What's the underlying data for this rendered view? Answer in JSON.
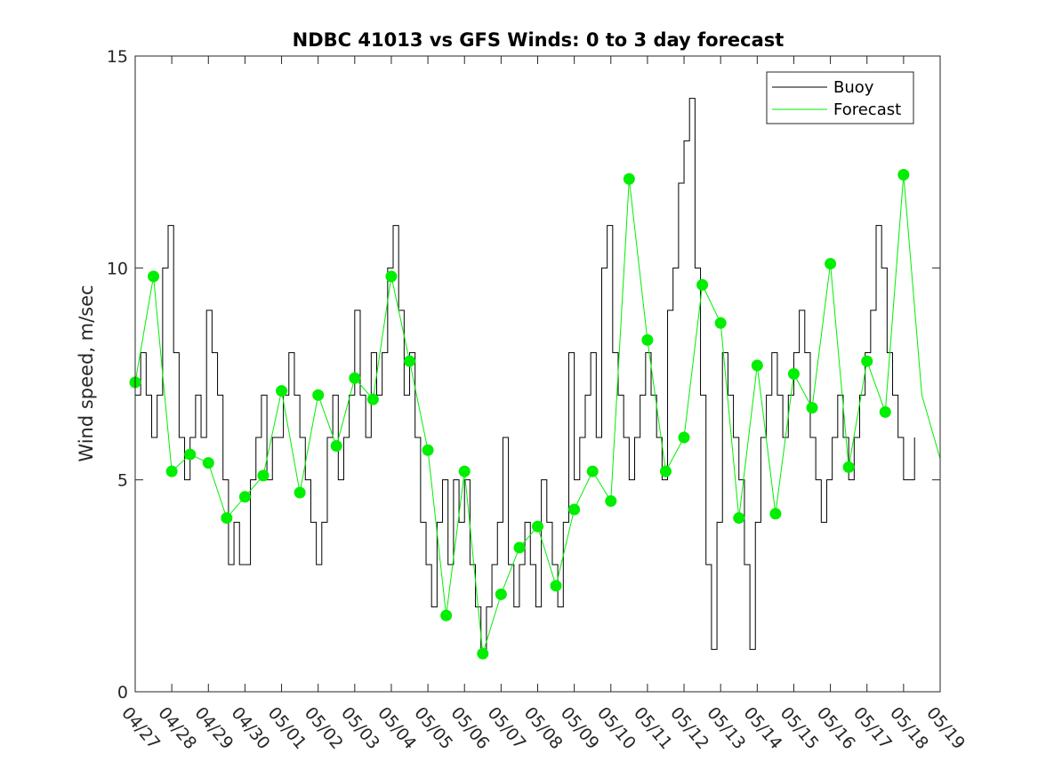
{
  "chart_data": {
    "type": "line",
    "title": "NDBC 41013 vs GFS Winds: 0 to 3 day forecast",
    "xlabel": "",
    "ylabel": "Wind speed, m/sec",
    "ylim": [
      0,
      15
    ],
    "yticks": [
      "0",
      "5",
      "10",
      "15"
    ],
    "xlim": [
      0,
      22
    ],
    "xticks": [
      "04/27",
      "04/28",
      "04/29",
      "04/30",
      "05/01",
      "05/02",
      "05/03",
      "05/04",
      "05/05",
      "05/06",
      "05/07",
      "05/08",
      "05/09",
      "05/10",
      "05/11",
      "05/12",
      "05/13",
      "05/14",
      "05/15",
      "05/16",
      "05/17",
      "05/18",
      "05/19"
    ],
    "grid": false,
    "legend_position": "top-right",
    "colors": {
      "buoy": "#000000",
      "forecast": "#00ee00",
      "axis": "#262626"
    },
    "buoy": {
      "name": "Buoy",
      "x": [
        0,
        0.15,
        0.3,
        0.45,
        0.6,
        0.75,
        0.9,
        1.05,
        1.2,
        1.35,
        1.5,
        1.65,
        1.8,
        1.95,
        2.1,
        2.25,
        2.4,
        2.55,
        2.7,
        2.85,
        3.0,
        3.15,
        3.3,
        3.45,
        3.6,
        3.75,
        3.9,
        4.05,
        4.2,
        4.35,
        4.5,
        4.65,
        4.8,
        4.95,
        5.1,
        5.25,
        5.4,
        5.55,
        5.7,
        5.85,
        6.0,
        6.15,
        6.3,
        6.45,
        6.6,
        6.75,
        6.9,
        7.05,
        7.2,
        7.35,
        7.5,
        7.65,
        7.8,
        7.95,
        8.1,
        8.25,
        8.4,
        8.55,
        8.7,
        8.85,
        9.0,
        9.15,
        9.3,
        9.45,
        9.6,
        9.75,
        9.9,
        10.05,
        10.2,
        10.35,
        10.5,
        10.65,
        10.8,
        10.95,
        11.1,
        11.25,
        11.4,
        11.55,
        11.7,
        11.85,
        12.0,
        12.15,
        12.3,
        12.45,
        12.6,
        12.75,
        12.9,
        13.05,
        13.2,
        13.35,
        13.5,
        13.65,
        13.8,
        13.95,
        14.1,
        14.25,
        14.4,
        14.55,
        14.7,
        14.85,
        15.0,
        15.15,
        15.3,
        15.45,
        15.6,
        15.75,
        15.9,
        16.05,
        16.2,
        16.35,
        16.5,
        16.65,
        16.8,
        16.95,
        17.1,
        17.25,
        17.4,
        17.55,
        17.7,
        17.85,
        18.0,
        18.15,
        18.3,
        18.45,
        18.6,
        18.75,
        18.9,
        19.05,
        19.2,
        19.35,
        19.5,
        19.65,
        19.8,
        19.95,
        20.1,
        20.25,
        20.4,
        20.55,
        20.7,
        20.85,
        21.0,
        21.15,
        21.3
      ],
      "values": [
        7,
        8,
        7,
        6,
        7,
        10,
        11,
        8,
        6,
        5,
        6,
        7,
        6,
        9,
        8,
        7,
        5,
        3,
        4,
        3,
        3,
        5,
        6,
        7,
        5,
        6,
        6,
        7,
        8,
        7,
        6,
        5,
        4,
        3,
        4,
        6,
        7,
        5,
        6,
        7,
        9,
        7,
        6,
        8,
        7,
        8,
        10,
        11,
        9,
        7,
        8,
        6,
        4,
        3,
        2,
        4,
        5,
        3,
        5,
        4,
        5,
        3,
        2,
        1,
        2,
        3,
        4,
        6,
        3,
        2,
        3,
        4,
        3,
        2,
        5,
        4,
        3,
        2,
        4,
        8,
        5,
        6,
        7,
        8,
        6,
        10,
        11,
        8,
        7,
        6,
        5,
        6,
        7,
        8,
        7,
        6,
        5,
        9,
        10,
        12,
        13,
        14,
        10,
        7,
        3,
        1,
        4,
        8,
        7,
        6,
        5,
        3,
        1,
        4,
        6,
        7,
        8,
        7,
        6,
        7,
        8,
        9,
        8,
        6,
        5,
        4,
        5,
        6,
        7,
        6,
        5,
        6,
        7,
        8,
        9,
        11,
        10,
        8,
        7,
        6,
        5,
        5,
        6
      ]
    },
    "forecast": {
      "name": "Forecast",
      "x": [
        0,
        0.5,
        1,
        1.5,
        2,
        2.5,
        3,
        3.5,
        4,
        4.5,
        5,
        5.5,
        6,
        6.5,
        7,
        7.5,
        8,
        8.5,
        9,
        9.5,
        10,
        10.5,
        11,
        11.5,
        12,
        12.5,
        13,
        13.5,
        14,
        14.5,
        15,
        15.5,
        16,
        16.5,
        17,
        17.5,
        18,
        18.5,
        19,
        19.5,
        20,
        20.5,
        21,
        21.5,
        22
      ],
      "values": [
        7.3,
        9.8,
        5.2,
        5.6,
        5.4,
        4.1,
        4.6,
        5.1,
        7.1,
        4.7,
        7.0,
        5.8,
        7.4,
        6.9,
        9.8,
        7.8,
        5.7,
        1.8,
        5.2,
        0.9,
        2.3,
        3.4,
        3.9,
        2.5,
        4.3,
        5.2,
        4.5,
        12.1,
        8.3,
        5.2,
        6.0,
        9.6,
        8.7,
        4.1,
        7.7,
        4.2,
        7.5,
        6.7,
        10.1,
        5.3,
        7.8,
        6.6,
        12.2,
        7.0,
        5.5
      ],
      "markers": true
    }
  }
}
